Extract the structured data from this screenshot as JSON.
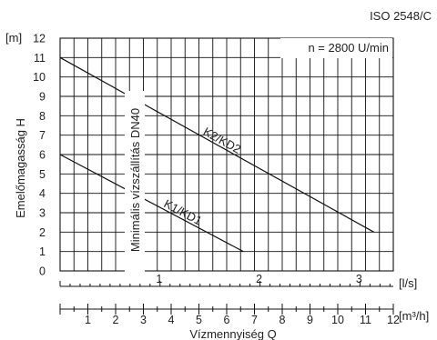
{
  "chart_data": {
    "type": "line",
    "standard": "ISO 2548/C",
    "speed_label": "n = 2800 U/min",
    "ylabel": "Emelőmagasság H",
    "y_unit": "[m]",
    "ylim": [
      0,
      12
    ],
    "y_ticks": [
      "0",
      "1",
      "2",
      "3",
      "4",
      "5",
      "6",
      "7",
      "8",
      "9",
      "10",
      "11",
      "12"
    ],
    "x_ls_unit": "[l/s]",
    "x_ls_ticks": [
      "1",
      "2",
      "3"
    ],
    "xlabel": "Vízmennyiség Q",
    "x_m3h_unit": "[m³/h]",
    "xlim_m3h": [
      0,
      12
    ],
    "x_m3h_ticks": [
      "1",
      "2",
      "3",
      "4",
      "5",
      "6",
      "7",
      "8",
      "9",
      "10",
      "11",
      "12"
    ],
    "min_flow_label": "Minimális vízszállítás DN40",
    "min_flow_m3h": 2.9,
    "series": [
      {
        "name": "K2/KD2",
        "points": [
          [
            0,
            11
          ],
          [
            11.3,
            2
          ]
        ]
      },
      {
        "name": "K1/KD1",
        "points": [
          [
            0,
            6
          ],
          [
            6.6,
            1
          ]
        ]
      }
    ]
  }
}
